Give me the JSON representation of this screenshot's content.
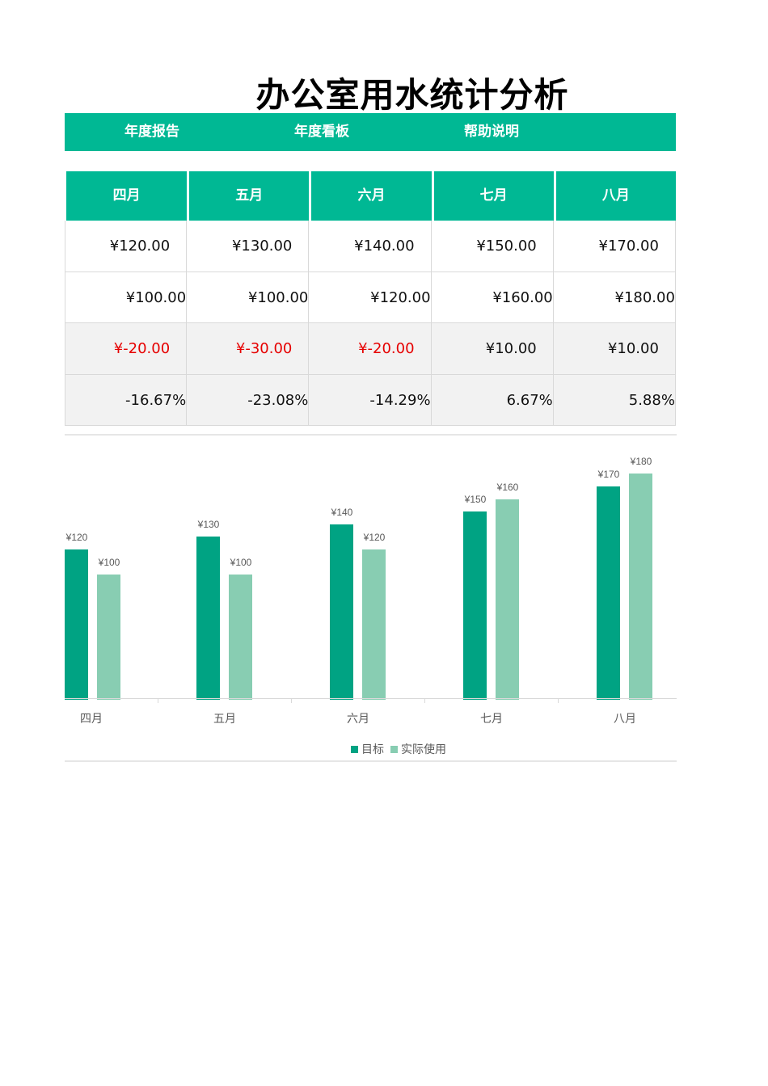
{
  "title": "办公室用水统计分析",
  "nav": {
    "items": [
      {
        "label": "年度报告"
      },
      {
        "label": "年度看板"
      },
      {
        "label": "帮助说明"
      }
    ]
  },
  "colors": {
    "accent": "#00b894",
    "target_bar": "#00a383",
    "actual_bar": "#88cdb2",
    "negative": "#e60000",
    "shaded_row": "#f2f2f2"
  },
  "table": {
    "headers": [
      "四月",
      "五月",
      "六月",
      "七月",
      "八月"
    ],
    "rows": [
      [
        "¥120.00",
        "¥130.00",
        "¥140.00",
        "¥150.00",
        "¥170.00"
      ],
      [
        "¥100.00",
        "¥100.00",
        "¥120.00",
        "¥160.00",
        "¥180.00"
      ],
      [
        "¥-20.00",
        "¥-30.00",
        "¥-20.00",
        "¥10.00",
        "¥10.00"
      ],
      [
        "-16.67%",
        "-23.08%",
        "-14.29%",
        "6.67%",
        "5.88%"
      ]
    ]
  },
  "chart_data": {
    "type": "bar",
    "title": "",
    "categories": [
      "四月",
      "五月",
      "六月",
      "七月",
      "八月"
    ],
    "series": [
      {
        "name": "目标",
        "values": [
          120,
          130,
          140,
          150,
          170
        ],
        "labels": [
          "¥120",
          "¥130",
          "¥140",
          "¥150",
          "¥170"
        ]
      },
      {
        "name": "实际使用",
        "values": [
          100,
          100,
          120,
          160,
          180
        ],
        "labels": [
          "¥100",
          "¥100",
          "¥120",
          "¥160",
          "¥180"
        ]
      }
    ],
    "xlabel": "",
    "ylabel": "",
    "ylim": [
      0,
      200
    ],
    "grid": false,
    "legend_position": "bottom"
  }
}
